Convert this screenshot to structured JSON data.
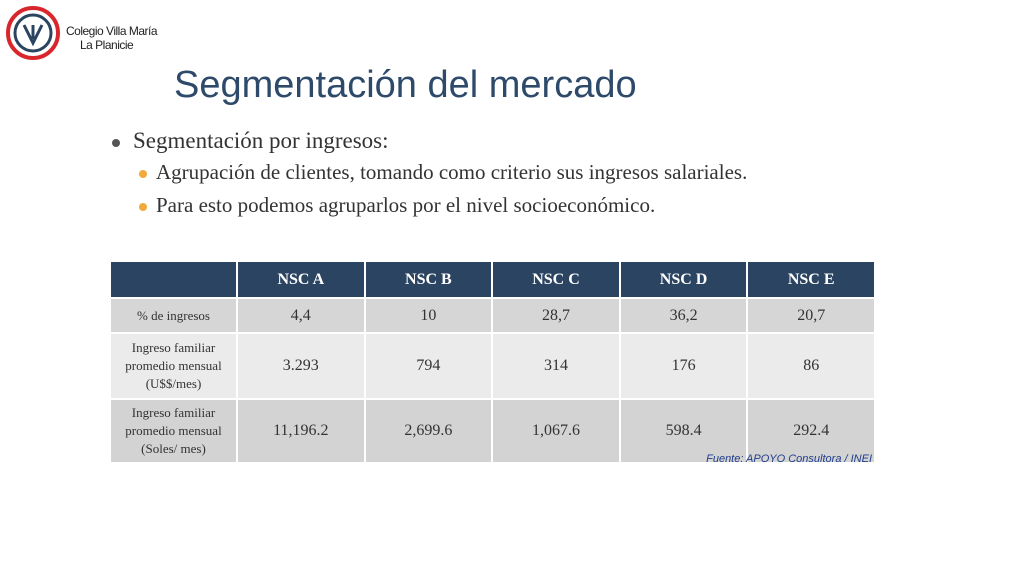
{
  "header": {
    "school_line1": "Colegio Villa María",
    "school_line2": "La Planicie"
  },
  "title": "Segmentación del mercado",
  "bullets": [
    {
      "text": "Segmentación por ingresos:",
      "children": [
        "Agrupación de clientes, tomando como criterio sus ingresos salariales.",
        "Para esto podemos agruparlos por el nivel socioeconómico."
      ]
    }
  ],
  "table": {
    "columns": [
      "NSC A",
      "NSC B",
      "NSC C",
      "NSC D",
      "NSC E"
    ],
    "rows": [
      [
        "% de ingresos",
        "4,4",
        "10",
        "28,7",
        "36,2",
        "20,7"
      ],
      [
        "Ingreso familiar promedio mensual (U$$/mes)",
        "3.293",
        "794",
        "314",
        "176",
        "86"
      ],
      [
        "Ingreso familiar promedio mensual (Soles/ mes)",
        "11,196.2",
        "2,699.6",
        "1,067.6",
        "598.4",
        "292.4"
      ]
    ]
  },
  "source": "Fuente: APOYO Consultora / INEI"
}
